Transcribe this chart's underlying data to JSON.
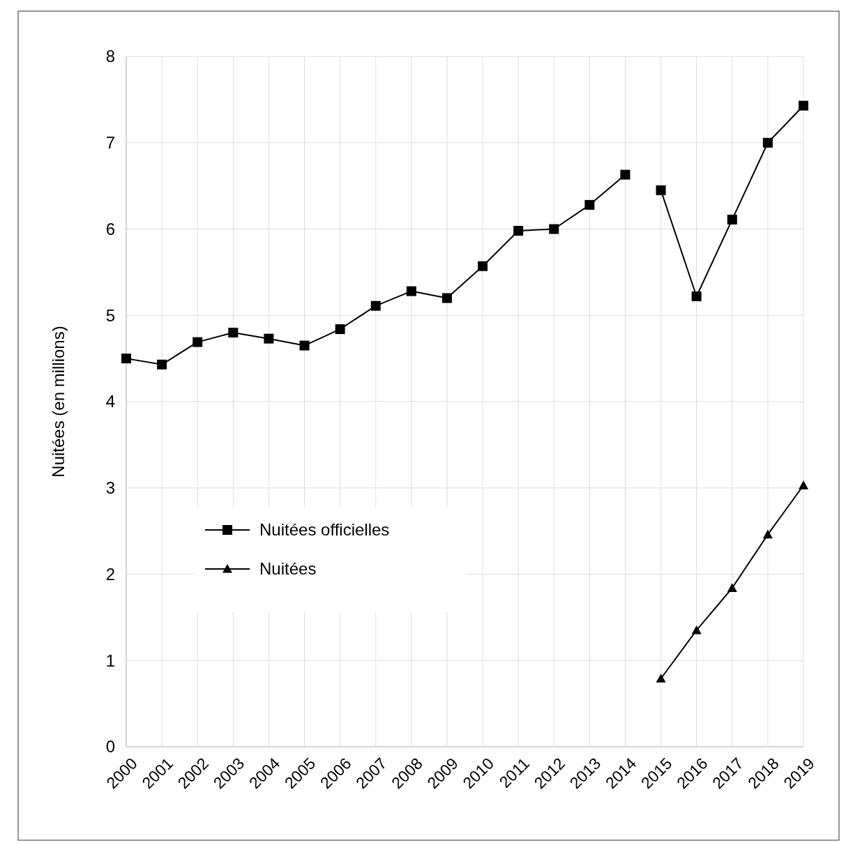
{
  "chart_data": {
    "type": "line",
    "ylabel": "Nuitées (en millions)",
    "categories": [
      "2000",
      "2001",
      "2002",
      "2003",
      "2004",
      "2005",
      "2006",
      "2007",
      "2008",
      "2009",
      "2010",
      "2011",
      "2012",
      "2013",
      "2014",
      "2015",
      "2016",
      "2017",
      "2018",
      "2019"
    ],
    "series": [
      {
        "name": "Nuitées officielles",
        "color": "#000000",
        "marker": "square",
        "values": [
          4.5,
          4.43,
          4.69,
          4.8,
          4.73,
          4.65,
          4.84,
          5.11,
          5.28,
          5.2,
          5.57,
          5.98,
          6.0,
          6.28,
          6.63,
          null,
          null,
          null,
          null,
          null
        ]
      },
      {
        "color": "#000000",
        "marker": "square",
        "values": [
          null,
          null,
          null,
          null,
          null,
          null,
          null,
          null,
          null,
          null,
          null,
          null,
          null,
          null,
          null,
          6.45,
          5.22,
          6.11,
          7.0,
          7.43
        ]
      },
      {
        "name": "Nuitées",
        "color": "#000000",
        "marker": "triangle",
        "values": [
          null,
          null,
          null,
          null,
          null,
          null,
          null,
          null,
          null,
          null,
          null,
          null,
          null,
          null,
          null,
          0.79,
          1.35,
          1.84,
          2.46,
          3.03
        ]
      }
    ],
    "ylim": [
      0,
      8
    ],
    "yticks": [
      0,
      1,
      2,
      3,
      4,
      5,
      6,
      7,
      8
    ],
    "grid": true,
    "legend": "left",
    "line_style": "solid"
  }
}
